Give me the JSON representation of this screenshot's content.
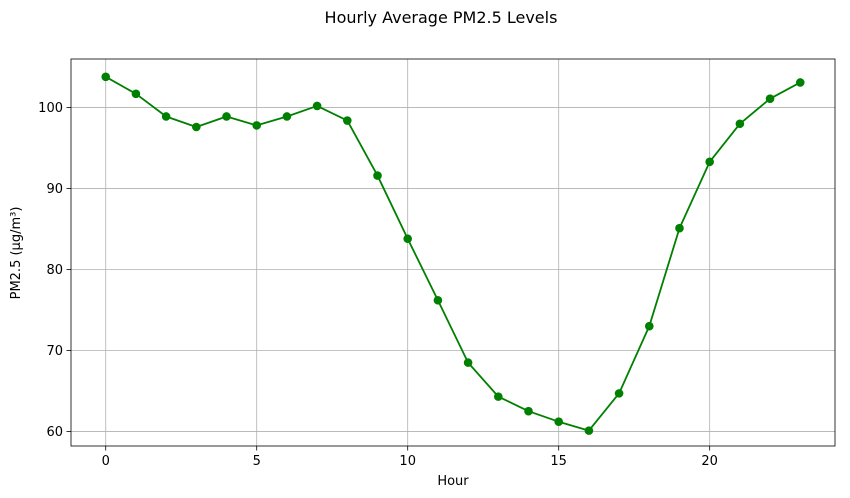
{
  "chart_data": {
    "type": "line",
    "title": "Hourly Average PM2.5 Levels",
    "xlabel": "Hour",
    "ylabel": "PM2.5 (μg/m³)",
    "x": [
      0,
      1,
      2,
      3,
      4,
      5,
      6,
      7,
      8,
      9,
      10,
      11,
      12,
      13,
      14,
      15,
      16,
      17,
      18,
      19,
      20,
      21,
      22,
      23
    ],
    "series": [
      {
        "values": [
          103.8,
          101.7,
          98.9,
          97.6,
          98.9,
          97.8,
          98.9,
          100.2,
          98.4,
          91.6,
          83.8,
          76.2,
          68.5,
          64.3,
          62.5,
          61.2,
          60.1,
          64.7,
          73.0,
          85.1,
          93.3,
          98.0,
          101.1,
          103.1
        ],
        "color": "#008000",
        "marker": "circle"
      }
    ],
    "xlim": [
      -1.15,
      24.15
    ],
    "ylim": [
      58.2,
      106.0
    ],
    "xticks": [
      0,
      5,
      10,
      15,
      20
    ],
    "yticks": [
      60,
      70,
      80,
      90,
      100
    ],
    "grid": true,
    "legend": false
  }
}
